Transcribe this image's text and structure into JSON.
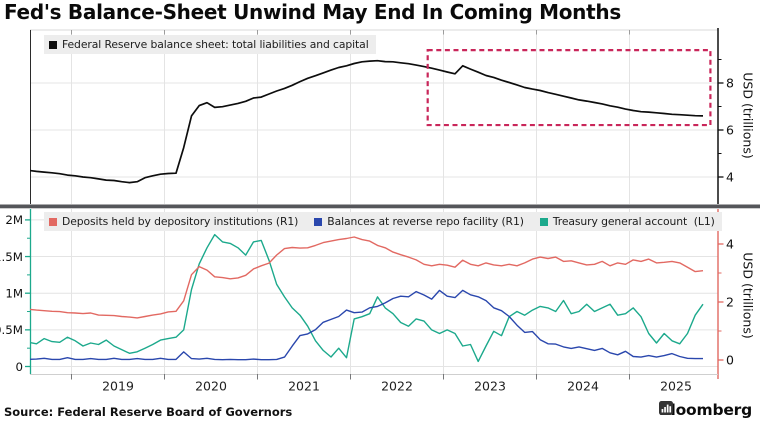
{
  "title": "Fed's Balance-Sheet Unwind May End In Coming Months",
  "footer": {
    "source": "Source: Federal Reserve Board of Governors",
    "brand": "Bloomberg"
  },
  "style": {
    "annotation_box": "#c9265a",
    "divider": "#55565a",
    "grid": "#e4e4e4",
    "legend_bg": "#ededed",
    "axis_black": "#111111"
  },
  "chart_data": [
    {
      "panel": "top",
      "type": "line",
      "ylabel_right": "USD (trillions)",
      "y_axis_right": {
        "ticks": [
          4,
          6,
          8
        ],
        "minor_ticks": [
          5,
          7,
          9
        ],
        "range": [
          2.85,
          10.26
        ]
      },
      "x_axis": {
        "range_years": [
          2018.54,
          2025.97
        ],
        "year_gridlines": [
          2019,
          2020,
          2021,
          2022,
          2023,
          2024,
          2025
        ]
      },
      "series": [
        {
          "name": "Federal Reserve balance sheet: total liabilities and capital",
          "axis": "right",
          "color": "#0d0d0d",
          "unit": "USD trillions",
          "start_year": 2018.54,
          "step_years": 0.083333,
          "values": [
            4.28,
            4.24,
            4.21,
            4.18,
            4.14,
            4.08,
            4.05,
            4.0,
            3.97,
            3.92,
            3.87,
            3.85,
            3.8,
            3.76,
            3.8,
            3.97,
            4.05,
            4.12,
            4.15,
            4.16,
            5.25,
            6.6,
            7.04,
            7.16,
            6.96,
            6.99,
            7.06,
            7.13,
            7.22,
            7.36,
            7.4,
            7.53,
            7.66,
            7.77,
            7.9,
            8.06,
            8.2,
            8.31,
            8.43,
            8.55,
            8.66,
            8.73,
            8.83,
            8.9,
            8.93,
            8.95,
            8.91,
            8.9,
            8.86,
            8.82,
            8.76,
            8.7,
            8.63,
            8.55,
            8.47,
            8.39,
            8.73,
            8.59,
            8.46,
            8.32,
            8.24,
            8.12,
            8.02,
            7.92,
            7.81,
            7.74,
            7.68,
            7.59,
            7.52,
            7.44,
            7.36,
            7.28,
            7.23,
            7.17,
            7.11,
            7.03,
            6.97,
            6.89,
            6.83,
            6.78,
            6.76,
            6.73,
            6.7,
            6.67,
            6.65,
            6.63,
            6.61,
            6.6
          ]
        }
      ],
      "annotation_box": {
        "x0_year": 2022.83,
        "x1_year": 2025.87,
        "y0": 6.21,
        "y1": 9.4,
        "style": "dashed",
        "color": "#c9265a"
      }
    },
    {
      "panel": "bottom",
      "type": "line",
      "ylabel_right": "USD (trillions)",
      "y_axis_left": {
        "ticks": [
          {
            "v": 0,
            "label": "0"
          },
          {
            "v": 0.5,
            "label": "0.5M"
          },
          {
            "v": 1,
            "label": "1M"
          },
          {
            "v": 1.5,
            "label": "1.5M"
          },
          {
            "v": 2,
            "label": "2M"
          }
        ],
        "minor_ticks": [
          0.25,
          0.75,
          1.25,
          1.75
        ],
        "color": "#1ca98c"
      },
      "y_axis_right": {
        "ticks": [
          0,
          2,
          4
        ],
        "minor_ticks": [
          1,
          3
        ],
        "color": "#e26962"
      },
      "x_axis": {
        "year_labels": [
          "2019",
          "2020",
          "2021",
          "2022",
          "2023",
          "2024",
          "2025"
        ],
        "year_gridlines": [
          2019,
          2020,
          2021,
          2022,
          2023,
          2024,
          2025
        ]
      },
      "series": [
        {
          "name": "Deposits held by depository institutions (R1)",
          "axis": "right",
          "color": "#e26962",
          "unit": "USD trillions",
          "start_year": 2018.54,
          "step_years": 0.083333,
          "values": [
            1.75,
            1.72,
            1.7,
            1.68,
            1.67,
            1.63,
            1.62,
            1.6,
            1.62,
            1.55,
            1.54,
            1.53,
            1.5,
            1.48,
            1.45,
            1.5,
            1.55,
            1.59,
            1.66,
            1.68,
            2.04,
            2.94,
            3.22,
            3.1,
            2.87,
            2.84,
            2.8,
            2.83,
            2.92,
            3.14,
            3.25,
            3.34,
            3.62,
            3.84,
            3.88,
            3.86,
            3.87,
            3.95,
            4.05,
            4.1,
            4.15,
            4.19,
            4.24,
            4.15,
            4.1,
            3.95,
            3.87,
            3.72,
            3.63,
            3.55,
            3.45,
            3.3,
            3.25,
            3.3,
            3.27,
            3.2,
            3.44,
            3.3,
            3.25,
            3.35,
            3.28,
            3.25,
            3.3,
            3.25,
            3.35,
            3.48,
            3.55,
            3.5,
            3.55,
            3.4,
            3.42,
            3.35,
            3.28,
            3.3,
            3.4,
            3.25,
            3.35,
            3.3,
            3.45,
            3.4,
            3.48,
            3.35,
            3.37,
            3.4,
            3.35,
            3.2,
            3.05,
            3.08
          ]
        },
        {
          "name": "Balances at reverse repo facility (R1)",
          "axis": "right",
          "color": "#2a47ad",
          "unit": "USD trillions",
          "start_year": 2018.54,
          "step_years": 0.083333,
          "values": [
            0.02,
            0.03,
            0.06,
            0.02,
            0.02,
            0.08,
            0.02,
            0.02,
            0.05,
            0.02,
            0.02,
            0.06,
            0.02,
            0.02,
            0.05,
            0.02,
            0.02,
            0.06,
            0.02,
            0.02,
            0.28,
            0.05,
            0.03,
            0.06,
            0.02,
            0.01,
            0.02,
            0.01,
            0.01,
            0.03,
            0.01,
            0.01,
            0.02,
            0.1,
            0.48,
            0.84,
            0.9,
            1.05,
            1.3,
            1.4,
            1.5,
            1.72,
            1.63,
            1.65,
            1.8,
            1.85,
            1.97,
            2.12,
            2.2,
            2.18,
            2.36,
            2.24,
            2.1,
            2.4,
            2.2,
            2.15,
            2.4,
            2.25,
            2.18,
            2.05,
            1.8,
            1.7,
            1.5,
            1.2,
            0.95,
            0.98,
            0.7,
            0.56,
            0.55,
            0.45,
            0.4,
            0.45,
            0.39,
            0.33,
            0.4,
            0.25,
            0.18,
            0.3,
            0.12,
            0.1,
            0.15,
            0.1,
            0.15,
            0.22,
            0.12,
            0.06,
            0.05,
            0.05
          ]
        },
        {
          "name": "Treasury general account  (L1)",
          "axis": "left",
          "color": "#1ca98c",
          "unit": "USD millions (M = trillion)",
          "start_year": 2018.54,
          "step_years": 0.083333,
          "values": [
            0.33,
            0.31,
            0.38,
            0.34,
            0.33,
            0.4,
            0.35,
            0.28,
            0.32,
            0.3,
            0.36,
            0.28,
            0.23,
            0.18,
            0.2,
            0.25,
            0.3,
            0.36,
            0.38,
            0.4,
            0.5,
            1.05,
            1.4,
            1.62,
            1.8,
            1.7,
            1.68,
            1.62,
            1.52,
            1.7,
            1.72,
            1.45,
            1.12,
            0.95,
            0.8,
            0.7,
            0.55,
            0.35,
            0.22,
            0.13,
            0.25,
            0.12,
            0.65,
            0.68,
            0.72,
            0.95,
            0.8,
            0.72,
            0.6,
            0.55,
            0.65,
            0.62,
            0.5,
            0.45,
            0.5,
            0.45,
            0.28,
            0.3,
            0.07,
            0.28,
            0.48,
            0.42,
            0.68,
            0.75,
            0.7,
            0.77,
            0.82,
            0.8,
            0.75,
            0.9,
            0.72,
            0.75,
            0.85,
            0.75,
            0.8,
            0.85,
            0.7,
            0.72,
            0.8,
            0.68,
            0.45,
            0.32,
            0.45,
            0.35,
            0.31,
            0.45,
            0.7,
            0.85
          ]
        }
      ]
    }
  ]
}
